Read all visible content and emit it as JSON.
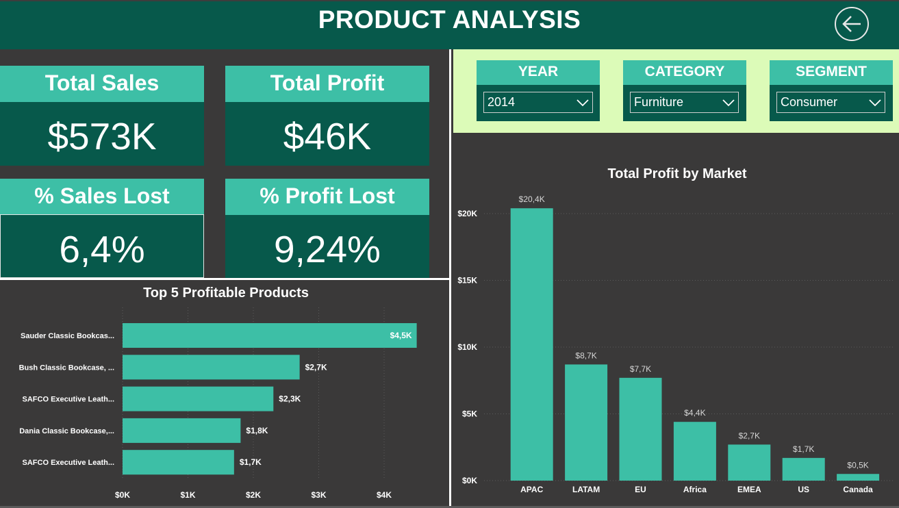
{
  "header": {
    "title": "PRODUCT ANALYSIS",
    "back_icon": "arrow-left-circle-icon"
  },
  "kpis": {
    "total_sales": {
      "label": "Total Sales",
      "value": "$573K"
    },
    "total_profit": {
      "label": "Total Profit",
      "value": "$46K"
    },
    "sales_lost": {
      "label": "% Sales Lost",
      "value": "6,4%"
    },
    "profit_lost": {
      "label": "% Profit Lost",
      "value": "9,24%"
    }
  },
  "filters": {
    "year": {
      "label": "YEAR",
      "value": "2014"
    },
    "category": {
      "label": "CATEGORY",
      "value": "Furniture"
    },
    "segment": {
      "label": "SEGMENT",
      "value": "Consumer"
    }
  },
  "colors": {
    "bar": "#3dbfa6",
    "header": "#07594b",
    "background": "#3a3939",
    "filter_panel": "#dcfbb8"
  },
  "chart_data": [
    {
      "type": "bar",
      "orientation": "horizontal",
      "title": "Top 5 Profitable Products",
      "categories": [
        "Sauder Classic Bookcas...",
        "Bush Classic Bookcase, ...",
        "SAFCO Executive Leath...",
        "Dania Classic Bookcase,...",
        "SAFCO Executive Leath..."
      ],
      "values": [
        4.5,
        2.7,
        2.3,
        1.8,
        1.7
      ],
      "data_labels": [
        "$4,5K",
        "$2,7K",
        "$2,3K",
        "$1,8K",
        "$1,7K"
      ],
      "x_ticks": [
        "$0K",
        "$1K",
        "$2K",
        "$3K",
        "$4K"
      ],
      "xlim": [
        0,
        4.5
      ],
      "grid": true
    },
    {
      "type": "bar",
      "title": "Total Profit by Market",
      "categories": [
        "APAC",
        "LATAM",
        "EU",
        "Africa",
        "EMEA",
        "US",
        "Canada"
      ],
      "values": [
        20.4,
        8.7,
        7.7,
        4.4,
        2.7,
        1.7,
        0.5
      ],
      "data_labels": [
        "$20,4K",
        "$8,7K",
        "$7,7K",
        "$4,4K",
        "$2,7K",
        "$1,7K",
        "$0,5K"
      ],
      "y_ticks": [
        "$0K",
        "$5K",
        "$10K",
        "$15K",
        "$20K"
      ],
      "ylim": [
        0,
        20
      ],
      "grid": true
    }
  ]
}
